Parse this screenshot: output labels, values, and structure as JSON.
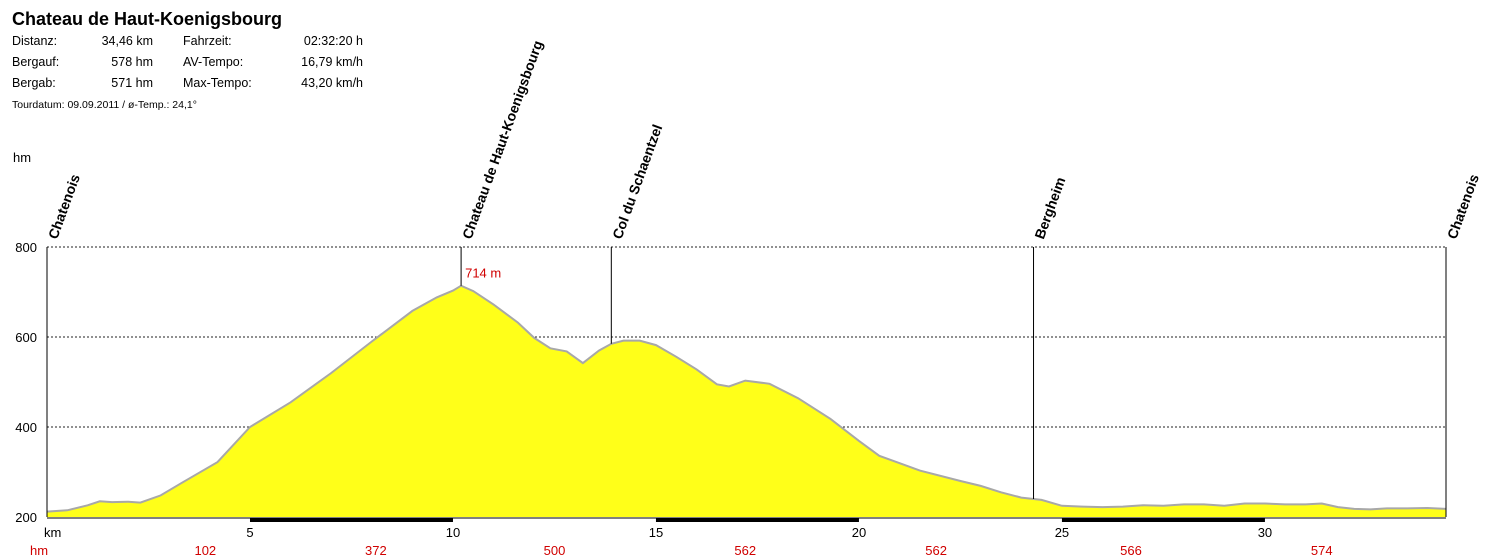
{
  "header": {
    "title": "Chateau de Haut-Koenigsbourg",
    "stats": [
      {
        "label": "Distanz:",
        "value": "34,46 km",
        "label2": "Fahrzeit:",
        "value2": "02:32:20 h"
      },
      {
        "label": "Bergauf:",
        "value": "578 hm",
        "label2": "AV-Tempo:",
        "value2": "16,79 km/h"
      },
      {
        "label": "Bergab:",
        "value": "571 hm",
        "label2": "Max-Tempo:",
        "value2": "43,20 km/h"
      }
    ],
    "tour_date_label": "Tourdatum: 09.09.2011  /  ø-Temp.: 24,1°"
  },
  "chart_data": {
    "type": "area",
    "title": "Chateau de Haut-Koenigsbourg",
    "xlabel": "km",
    "ylabel": "hm",
    "xlim": [
      0,
      34.46
    ],
    "ylim": [
      200,
      800
    ],
    "y_ticks": [
      200,
      400,
      600,
      800
    ],
    "x_ticks": [
      5,
      10,
      15,
      20,
      25,
      30
    ],
    "grid": "horizontal dashed at 400, 600, 800",
    "fill_color": "#ffff19",
    "line_color": "#a8a8a8",
    "peak_label": "714 m",
    "peak": {
      "x": 10.2,
      "y": 714
    },
    "cumulative_label": "hm",
    "cumulative_ascent": [
      {
        "x": 3.9,
        "label": "102"
      },
      {
        "x": 8.1,
        "label": "372"
      },
      {
        "x": 12.5,
        "label": "500"
      },
      {
        "x": 17.2,
        "label": "562"
      },
      {
        "x": 21.9,
        "label": "562"
      },
      {
        "x": 26.7,
        "label": "566"
      },
      {
        "x": 31.4,
        "label": "574"
      }
    ],
    "waypoints": [
      {
        "x": 0.0,
        "name": "Chatenois"
      },
      {
        "x": 10.2,
        "name": "Chateau de Haut-Koenigsbourg"
      },
      {
        "x": 13.9,
        "name": "Col du Schaentzel"
      },
      {
        "x": 24.3,
        "name": "Bergheim"
      },
      {
        "x": 34.46,
        "name": "Chatenois"
      }
    ],
    "series": [
      {
        "x": [
          0,
          0.5,
          1,
          1.3,
          1.6,
          2.0,
          2.3,
          2.8,
          3.3,
          4.2,
          5.0,
          6.0,
          7.0,
          8.0,
          9.0,
          9.6,
          10.0,
          10.2,
          10.5,
          11.0,
          11.6,
          12.0,
          12.4,
          12.8,
          13.2,
          13.6,
          13.9,
          14.2,
          14.6,
          15.0,
          15.5,
          16.0,
          16.5,
          16.8,
          17.2,
          17.8,
          18.5,
          19.3,
          20.0,
          20.5,
          21.5,
          22.5,
          23.0,
          23.5,
          24.0,
          24.5,
          25.0,
          25.5,
          26.0,
          26.5,
          27.0,
          27.5,
          28.0,
          28.5,
          29.0,
          29.5,
          30.0,
          30.5,
          31.0,
          31.4,
          31.8,
          32.2,
          32.6,
          33.0,
          33.5,
          34.0,
          34.46
        ],
        "y": [
          212,
          215,
          226,
          235,
          233,
          234,
          232,
          248,
          275,
          322,
          400,
          455,
          520,
          590,
          658,
          688,
          703,
          714,
          702,
          672,
          632,
          598,
          575,
          568,
          542,
          570,
          585,
          592,
          592,
          582,
          556,
          528,
          495,
          490,
          503,
          496,
          464,
          418,
          369,
          336,
          303,
          280,
          269,
          255,
          243,
          238,
          225,
          223,
          222,
          223,
          226,
          225,
          228,
          228,
          225,
          230,
          230,
          228,
          228,
          230,
          222,
          218,
          217,
          219,
          219,
          220,
          218
        ]
      }
    ]
  }
}
